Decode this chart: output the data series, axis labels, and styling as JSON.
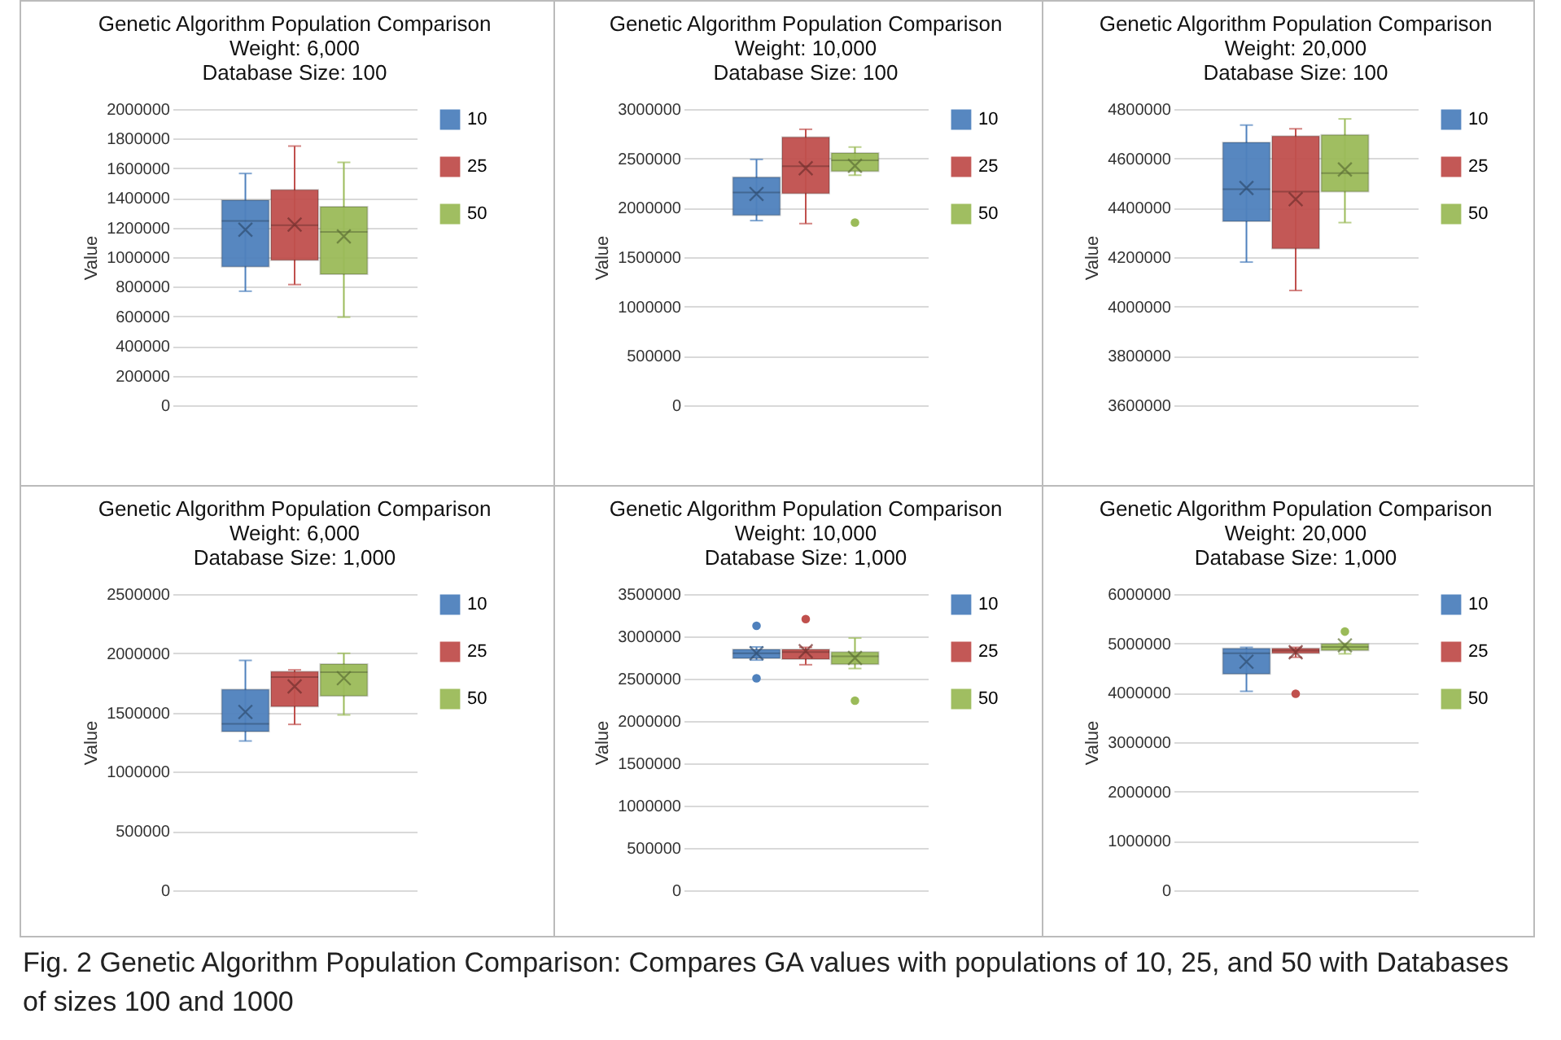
{
  "chart_data": [
    {
      "type": "box",
      "title": "Genetic Algorithm Population Comparison",
      "subtitle": "Weight: 6,000\nDatabase Size: 100",
      "ylabel": "Value",
      "categories": [
        null
      ],
      "ylim": [
        0,
        2000000
      ],
      "yticks": [
        0,
        200000,
        400000,
        600000,
        800000,
        1000000,
        1200000,
        1400000,
        1600000,
        1800000,
        2000000
      ],
      "grid": "y",
      "legend": "right",
      "series": [
        {
          "name": "10",
          "color": "#4f81bd",
          "boxes": [
            {
              "low": 770000,
              "q1": 935000,
              "median": 1245000,
              "q3": 1385000,
              "high": 1565000,
              "mean": 1185000
            }
          ]
        },
        {
          "name": "25",
          "color": "#c0504d",
          "boxes": [
            {
              "low": 815000,
              "q1": 980000,
              "median": 1215000,
              "q3": 1455000,
              "high": 1750000,
              "mean": 1220000
            }
          ]
        },
        {
          "name": "50",
          "color": "#9bbb59",
          "boxes": [
            {
              "low": 595000,
              "q1": 885000,
              "median": 1170000,
              "q3": 1340000,
              "high": 1640000,
              "mean": 1140000
            }
          ]
        }
      ]
    },
    {
      "type": "box",
      "title": "Genetic Algorithm Population Comparison",
      "subtitle": "Weight: 10,000\nDatabase Size: 100",
      "ylabel": "Value",
      "categories": [
        null
      ],
      "ylim": [
        0,
        3000000
      ],
      "yticks": [
        0,
        500000,
        1000000,
        1500000,
        2000000,
        2500000,
        3000000
      ],
      "grid": "y",
      "legend": "right",
      "series": [
        {
          "name": "10",
          "color": "#4f81bd",
          "boxes": [
            {
              "low": 1870000,
              "q1": 1925000,
              "median": 2155000,
              "q3": 2310000,
              "high": 2490000,
              "mean": 2140000
            }
          ]
        },
        {
          "name": "25",
          "color": "#c0504d",
          "boxes": [
            {
              "low": 1840000,
              "q1": 2145000,
              "median": 2420000,
              "q3": 2715000,
              "high": 2795000,
              "mean": 2400000
            }
          ]
        },
        {
          "name": "50",
          "color": "#9bbb59",
          "boxes": [
            {
              "low": 2330000,
              "q1": 2370000,
              "median": 2480000,
              "q3": 2555000,
              "high": 2615000,
              "mean": 2425000,
              "outliers": [
                1850000
              ]
            }
          ]
        }
      ]
    },
    {
      "type": "box",
      "title": "Genetic Algorithm Population Comparison",
      "subtitle": "Weight: 20,000\nDatabase Size: 100",
      "ylabel": "Value",
      "categories": [
        null
      ],
      "ylim": [
        3600000,
        4800000
      ],
      "yticks": [
        3600000,
        3800000,
        4000000,
        4200000,
        4400000,
        4600000,
        4800000
      ],
      "grid": "y",
      "legend": "right",
      "series": [
        {
          "name": "10",
          "color": "#4f81bd",
          "boxes": [
            {
              "low": 4180000,
              "q1": 4345000,
              "median": 4475000,
              "q3": 4665000,
              "high": 4735000,
              "mean": 4480000
            }
          ]
        },
        {
          "name": "25",
          "color": "#c0504d",
          "boxes": [
            {
              "low": 4065000,
              "q1": 4235000,
              "median": 4465000,
              "q3": 4690000,
              "high": 4720000,
              "mean": 4435000
            }
          ]
        },
        {
          "name": "50",
          "color": "#9bbb59",
          "boxes": [
            {
              "low": 4340000,
              "q1": 4465000,
              "median": 4540000,
              "q3": 4695000,
              "high": 4760000,
              "mean": 4555000
            }
          ]
        }
      ]
    },
    {
      "type": "box",
      "title": "Genetic Algorithm Population Comparison",
      "subtitle": "Weight: 6,000\nDatabase Size: 1,000",
      "ylabel": "Value",
      "categories": [
        null
      ],
      "ylim": [
        0,
        2500000
      ],
      "yticks": [
        0,
        500000,
        1000000,
        1500000,
        2000000,
        2500000
      ],
      "grid": "y",
      "legend": "right",
      "series": [
        {
          "name": "10",
          "color": "#4f81bd",
          "boxes": [
            {
              "low": 1260000,
              "q1": 1340000,
              "median": 1405000,
              "q3": 1695000,
              "high": 1940000,
              "mean": 1505000
            }
          ]
        },
        {
          "name": "25",
          "color": "#c0504d",
          "boxes": [
            {
              "low": 1400000,
              "q1": 1550000,
              "median": 1800000,
              "q3": 1845000,
              "high": 1860000,
              "mean": 1720000
            }
          ]
        },
        {
          "name": "50",
          "color": "#9bbb59",
          "boxes": [
            {
              "low": 1480000,
              "q1": 1640000,
              "median": 1840000,
              "q3": 1910000,
              "high": 2000000,
              "mean": 1790000
            }
          ]
        }
      ]
    },
    {
      "type": "box",
      "title": "Genetic Algorithm Population Comparison",
      "subtitle": "Weight: 10,000\nDatabase Size: 1,000",
      "ylabel": "Value",
      "categories": [
        null
      ],
      "ylim": [
        0,
        3500000
      ],
      "yticks": [
        0,
        500000,
        1000000,
        1500000,
        2000000,
        2500000,
        3000000,
        3500000
      ],
      "grid": "y",
      "legend": "right",
      "series": [
        {
          "name": "10",
          "color": "#4f81bd",
          "boxes": [
            {
              "low": 2720000,
              "q1": 2740000,
              "median": 2800000,
              "q3": 2845000,
              "high": 2875000,
              "mean": 2800000,
              "outliers": [
                3125000,
                2505000
              ]
            }
          ]
        },
        {
          "name": "25",
          "color": "#c0504d",
          "boxes": [
            {
              "low": 2665000,
              "q1": 2730000,
              "median": 2815000,
              "q3": 2845000,
              "high": 2870000,
              "mean": 2825000,
              "outliers": [
                3205000
              ]
            }
          ]
        },
        {
          "name": "50",
          "color": "#9bbb59",
          "boxes": [
            {
              "low": 2620000,
              "q1": 2670000,
              "median": 2765000,
              "q3": 2815000,
              "high": 2980000,
              "mean": 2745000,
              "outliers": [
                2240000
              ]
            }
          ]
        }
      ]
    },
    {
      "type": "box",
      "title": "Genetic Algorithm Population Comparison",
      "subtitle": "Weight: 20,000\nDatabase Size: 1,000",
      "ylabel": "Value",
      "categories": [
        null
      ],
      "ylim": [
        0,
        6000000
      ],
      "yticks": [
        0,
        1000000,
        2000000,
        3000000,
        4000000,
        5000000,
        6000000
      ],
      "grid": "y",
      "legend": "right",
      "annotations": [
        "Fig. 2  Genetic Algorithm Population Comparison: Compares GA values with populations of 10, 25, and 50 with Databases of sizes 100 and 1000"
      ],
      "series": [
        {
          "name": "10",
          "color": "#4f81bd",
          "boxes": [
            {
              "low": 4030000,
              "q1": 4380000,
              "median": 4800000,
              "q3": 4900000,
              "high": 4920000,
              "mean": 4630000
            }
          ]
        },
        {
          "name": "25",
          "color": "#c0504d",
          "boxes": [
            {
              "low": 4720000,
              "q1": 4800000,
              "median": 4855000,
              "q3": 4900000,
              "high": 4920000,
              "mean": 4820000,
              "outliers": [
                3980000
              ]
            }
          ]
        },
        {
          "name": "50",
          "color": "#9bbb59",
          "boxes": [
            {
              "low": 4790000,
              "q1": 4860000,
              "median": 4930000,
              "q3": 4990000,
              "high": 5000000,
              "mean": 4960000,
              "outliers": [
                5240000
              ]
            }
          ]
        }
      ]
    }
  ]
}
